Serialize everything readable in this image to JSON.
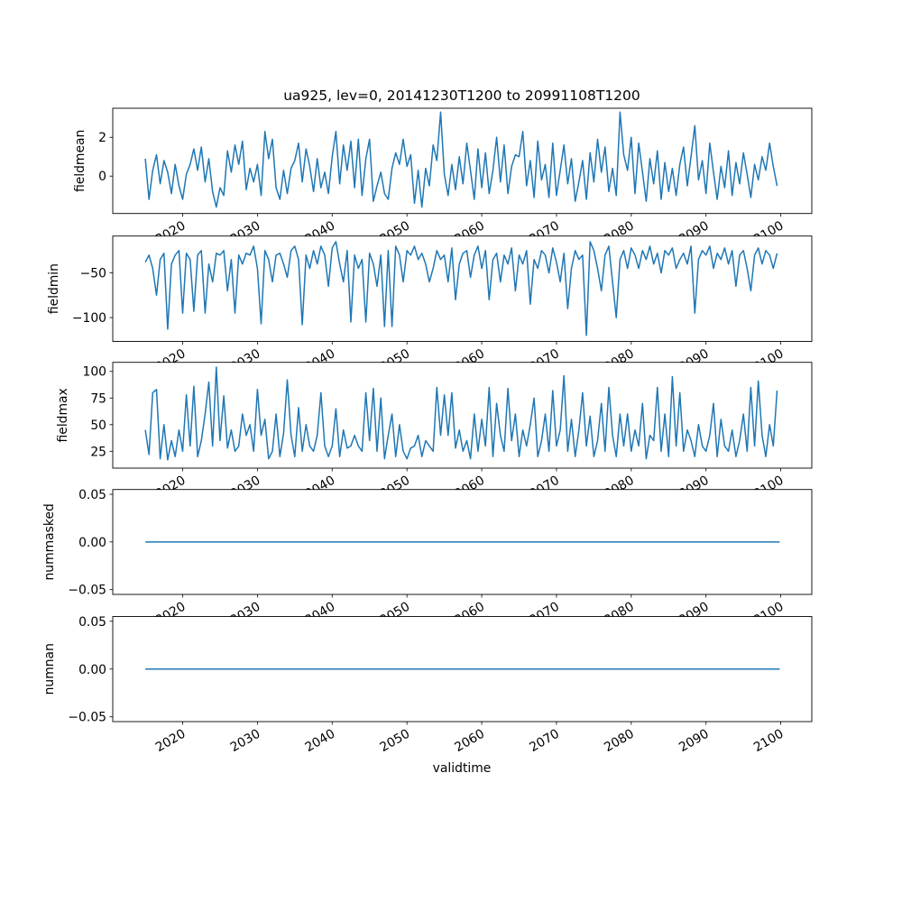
{
  "chart_data": [
    {
      "type": "line",
      "title": "ua925, lev=0, 20141230T1200 to 20991108T1200",
      "ylabel": "fieldmean",
      "xlabel": "",
      "xlim": [
        2010.65,
        2104.15
      ],
      "ylim": [
        -1.93,
        3.5
      ],
      "yticks": [
        0,
        2
      ],
      "ytick_labels": [
        "0",
        "2"
      ],
      "x_start": 2015,
      "x_step": 0.5,
      "color": "#1f77b4",
      "values": [
        0.9,
        -1.2,
        0.3,
        1.1,
        -0.4,
        0.8,
        0.2,
        -0.9,
        0.6,
        -0.5,
        -1.2,
        0.1,
        0.6,
        1.4,
        0.3,
        1.5,
        -0.3,
        0.9,
        -0.8,
        -1.6,
        -0.6,
        -1.0,
        1.3,
        0.2,
        1.6,
        0.6,
        1.8,
        -0.7,
        0.4,
        -0.3,
        0.6,
        -1.0,
        2.3,
        0.9,
        1.9,
        -0.6,
        -1.2,
        0.3,
        -0.9,
        0.4,
        0.8,
        1.7,
        -0.3,
        1.4,
        0.5,
        -0.8,
        0.9,
        -0.6,
        0.2,
        -0.9,
        1.0,
        2.3,
        -0.4,
        1.6,
        0.3,
        1.8,
        -0.6,
        1.9,
        -1.0,
        0.9,
        1.9,
        -1.3,
        -0.5,
        0.2,
        -0.9,
        -1.2,
        0.4,
        1.2,
        0.6,
        1.9,
        0.5,
        1.1,
        -1.4,
        0.3,
        -1.6,
        0.4,
        -0.5,
        1.6,
        0.8,
        3.3,
        0.1,
        -1.0,
        0.6,
        -0.7,
        1.0,
        -0.4,
        1.7,
        0.3,
        -1.2,
        1.4,
        -0.6,
        1.2,
        -0.9,
        0.3,
        2.0,
        -0.3,
        1.6,
        -0.9,
        0.5,
        1.1,
        1.0,
        2.3,
        -0.5,
        0.8,
        -1.1,
        1.8,
        -0.2,
        0.6,
        -1.1,
        1.7,
        -1.0,
        0.3,
        1.6,
        -0.4,
        0.9,
        -1.3,
        -0.3,
        0.8,
        -1.2,
        1.2,
        -0.3,
        1.9,
        0.2,
        1.5,
        -0.8,
        0.4,
        -1.0,
        3.3,
        1.1,
        0.3,
        2.0,
        -0.9,
        1.7,
        0.2,
        -1.3,
        0.9,
        -0.4,
        1.3,
        -1.2,
        0.7,
        -0.8,
        0.4,
        -1.0,
        0.6,
        1.5,
        -0.5,
        1.0,
        2.6,
        -0.2,
        0.8,
        -0.9,
        1.7,
        0.2,
        -1.2,
        0.5,
        -0.6,
        1.3,
        -1.0,
        0.7,
        -0.4,
        1.2,
        0.1,
        -1.1,
        0.6,
        -0.2,
        1.0,
        0.3,
        1.7,
        0.5,
        -0.5
      ]
    },
    {
      "type": "line",
      "ylabel": "fieldmin",
      "xlabel": "",
      "xlim": [
        2010.65,
        2104.15
      ],
      "ylim": [
        -126.7,
        -8.7
      ],
      "yticks": [
        -100,
        -50
      ],
      "ytick_labels": [
        "−100",
        "−50"
      ],
      "x_start": 2015,
      "x_step": 0.5,
      "color": "#1f77b4",
      "values": [
        -38,
        -30,
        -45,
        -75,
        -35,
        -28,
        -113,
        -40,
        -30,
        -25,
        -95,
        -28,
        -35,
        -93,
        -30,
        -25,
        -95,
        -40,
        -60,
        -28,
        -30,
        -25,
        -70,
        -35,
        -95,
        -30,
        -40,
        -28,
        -30,
        -20,
        -45,
        -107,
        -25,
        -35,
        -60,
        -30,
        -28,
        -40,
        -55,
        -25,
        -20,
        -35,
        -108,
        -30,
        -45,
        -25,
        -40,
        -20,
        -30,
        -65,
        -22,
        -15,
        -40,
        -60,
        -25,
        -105,
        -30,
        -45,
        -35,
        -105,
        -28,
        -40,
        -65,
        -30,
        -110,
        -25,
        -110,
        -20,
        -30,
        -60,
        -25,
        -30,
        -20,
        -35,
        -28,
        -40,
        -60,
        -45,
        -25,
        -35,
        -30,
        -60,
        -22,
        -80,
        -40,
        -28,
        -25,
        -55,
        -30,
        -20,
        -45,
        -25,
        -80,
        -35,
        -28,
        -60,
        -30,
        -40,
        -22,
        -70,
        -30,
        -40,
        -25,
        -85,
        -35,
        -45,
        -25,
        -30,
        -50,
        -22,
        -38,
        -60,
        -28,
        -90,
        -45,
        -25,
        -35,
        -30,
        -120,
        -15,
        -25,
        -45,
        -70,
        -30,
        -20,
        -60,
        -100,
        -35,
        -25,
        -45,
        -22,
        -30,
        -45,
        -25,
        -35,
        -20,
        -40,
        -28,
        -50,
        -25,
        -30,
        -22,
        -45,
        -35,
        -28,
        -40,
        -20,
        -95,
        -35,
        -25,
        -30,
        -20,
        -45,
        -28,
        -35,
        -22,
        -40,
        -25,
        -65,
        -30,
        -25,
        -45,
        -70,
        -30,
        -22,
        -40,
        -25,
        -30,
        -45,
        -28
      ]
    },
    {
      "type": "line",
      "ylabel": "fieldmax",
      "xlabel": "",
      "xlim": [
        2010.65,
        2104.15
      ],
      "ylim": [
        9.2,
        108.5
      ],
      "yticks": [
        25,
        50,
        75,
        100
      ],
      "ytick_labels": [
        "25",
        "50",
        "75",
        "100"
      ],
      "x_start": 2015,
      "x_step": 0.5,
      "color": "#1f77b4",
      "values": [
        45,
        22,
        80,
        83,
        18,
        50,
        17,
        35,
        20,
        45,
        25,
        78,
        30,
        86,
        20,
        35,
        60,
        90,
        30,
        104,
        35,
        77,
        28,
        45,
        25,
        30,
        60,
        40,
        50,
        25,
        83,
        40,
        55,
        18,
        25,
        60,
        20,
        42,
        92,
        40,
        20,
        66,
        25,
        50,
        30,
        25,
        40,
        80,
        30,
        20,
        30,
        65,
        20,
        45,
        28,
        30,
        40,
        30,
        25,
        80,
        35,
        84,
        25,
        75,
        18,
        40,
        60,
        20,
        50,
        25,
        18,
        28,
        30,
        40,
        20,
        35,
        30,
        25,
        85,
        40,
        78,
        40,
        80,
        28,
        45,
        25,
        35,
        18,
        60,
        25,
        55,
        30,
        85,
        20,
        70,
        40,
        25,
        84,
        35,
        60,
        20,
        45,
        30,
        50,
        75,
        20,
        35,
        60,
        25,
        82,
        30,
        45,
        96,
        25,
        55,
        20,
        45,
        80,
        30,
        58,
        20,
        35,
        70,
        25,
        85,
        40,
        20,
        60,
        30,
        60,
        25,
        45,
        30,
        70,
        18,
        40,
        35,
        85,
        25,
        60,
        20,
        95,
        30,
        80,
        25,
        45,
        35,
        20,
        50,
        30,
        25,
        40,
        70,
        20,
        55,
        30,
        25,
        45,
        20,
        35,
        60,
        25,
        85,
        30,
        91,
        40,
        20,
        50,
        30,
        82
      ]
    },
    {
      "type": "line",
      "ylabel": "nummasked",
      "xlabel": "",
      "xlim": [
        2010.65,
        2104.15
      ],
      "ylim": [
        -0.055,
        0.055
      ],
      "yticks": [
        -0.05,
        0,
        0.05
      ],
      "ytick_labels": [
        "−0.05",
        "0.00",
        "0.05"
      ],
      "x_start": 2015,
      "x_step": 84.85,
      "color": "#1f77b4",
      "values": [
        0,
        0
      ]
    },
    {
      "type": "line",
      "ylabel": "numnan",
      "xlabel": "validtime",
      "xlim": [
        2010.65,
        2104.15
      ],
      "ylim": [
        -0.055,
        0.055
      ],
      "yticks": [
        -0.05,
        0,
        0.05
      ],
      "ytick_labels": [
        "−0.05",
        "0.00",
        "0.05"
      ],
      "x_start": 2015,
      "x_step": 84.85,
      "color": "#1f77b4",
      "values": [
        0,
        0
      ]
    }
  ],
  "xticks": [
    2020,
    2030,
    2040,
    2050,
    2060,
    2070,
    2080,
    2090,
    2100
  ],
  "xtick_labels": [
    "2020",
    "2030",
    "2040",
    "2050",
    "2060",
    "2070",
    "2080",
    "2090",
    "2100"
  ]
}
